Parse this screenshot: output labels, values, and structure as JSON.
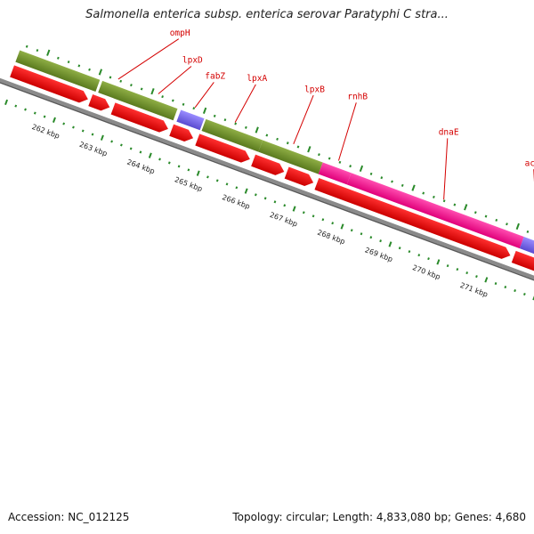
{
  "title": "Salmonella enterica subsp. enterica serovar Paratyphi C stra...",
  "footer": {
    "accession": "Accession: NC_012125",
    "summary": "Topology: circular; Length: 4,833,080 bp; Genes: 4,680"
  },
  "colors": {
    "cds_forward": "#6e8b2a",
    "cds_pink": "#ff1493",
    "cds_purple": "#7b68ee",
    "cds_grey": "#c8c8c8",
    "cds_reverse": "#ff0000",
    "label": "#d40000",
    "tick": "#2a8a2a",
    "backbone": "#808080"
  },
  "gene_labels": [
    {
      "name": "ompH",
      "text": "ompH"
    },
    {
      "name": "lpxD",
      "text": "lpxD"
    },
    {
      "name": "fabZ",
      "text": "fabZ"
    },
    {
      "name": "lpxA",
      "text": "lpxA"
    },
    {
      "name": "lpxB",
      "text": "lpxB"
    },
    {
      "name": "rnhB",
      "text": "rnhB"
    },
    {
      "name": "dnaE",
      "text": "dnaE"
    },
    {
      "name": "accA",
      "text": "accA"
    }
  ],
  "scale_labels": [
    "262 kbp",
    "263 kbp",
    "264 kbp",
    "265 kbp",
    "266 kbp",
    "267 kbp",
    "268 kbp",
    "269 kbp",
    "270 kbp",
    "271 kbp"
  ]
}
